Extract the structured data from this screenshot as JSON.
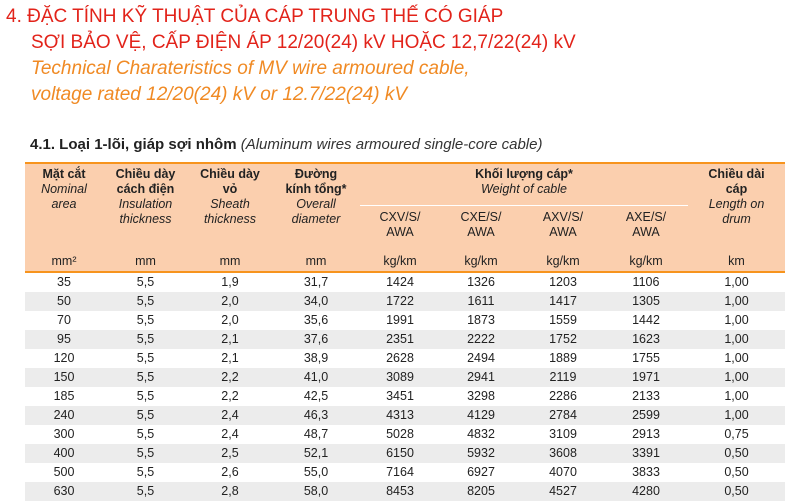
{
  "header": {
    "title_lines": [
      "4. ĐẶC TÍNH KỸ THUẬT CỦA CÁP TRUNG THẾ CÓ GIÁP",
      "SỢI BẢO VỆ, CẤP ĐIỆN ÁP 12/20(24) kV HOẶC 12,7/22(24) kV"
    ],
    "subtitle_lines": [
      "Technical Charateristics of MV wire armoured cable,",
      "voltage rated 12/20(24) kV or 12.7/22(24) kV"
    ]
  },
  "section": {
    "label": "4.1. Loại 1-lõi, giáp sợi nhôm",
    "note": "(Aluminum wires armoured single-core cable)"
  },
  "table": {
    "left_columns": [
      {
        "vi": "Mặt cắt",
        "en": "Nominal\narea"
      },
      {
        "vi": "Chiều dày\ncách điện",
        "en": "Insulation\nthickness"
      },
      {
        "vi": "Chiều dày\nvỏ",
        "en": "Sheath\nthickness"
      },
      {
        "vi": "Đường\nkính tổng*",
        "en": "Overall\ndiameter"
      }
    ],
    "group": {
      "vi": "Khối lượng cáp*",
      "en": "Weight of cable",
      "subcolumns": [
        "CXV/S/\nAWA",
        "CXE/S/\nAWA",
        "AXV/S/\nAWA",
        "AXE/S/\nAWA"
      ]
    },
    "right_column": {
      "vi": "Chiều dài\ncáp",
      "en": "Length on\ndrum"
    },
    "units": [
      "mm²",
      "mm",
      "mm",
      "mm",
      "kg/km",
      "kg/km",
      "kg/km",
      "kg/km",
      "km"
    ],
    "rows": [
      [
        "35",
        "5,5",
        "1,9",
        "31,7",
        "1424",
        "1326",
        "1203",
        "1106",
        "1,00"
      ],
      [
        "50",
        "5,5",
        "2,0",
        "34,0",
        "1722",
        "1611",
        "1417",
        "1305",
        "1,00"
      ],
      [
        "70",
        "5,5",
        "2,0",
        "35,6",
        "1991",
        "1873",
        "1559",
        "1442",
        "1,00"
      ],
      [
        "95",
        "5,5",
        "2,1",
        "37,6",
        "2351",
        "2222",
        "1752",
        "1623",
        "1,00"
      ],
      [
        "120",
        "5,5",
        "2,1",
        "38,9",
        "2628",
        "2494",
        "1889",
        "1755",
        "1,00"
      ],
      [
        "150",
        "5,5",
        "2,2",
        "41,0",
        "3089",
        "2941",
        "2119",
        "1971",
        "1,00"
      ],
      [
        "185",
        "5,5",
        "2,2",
        "42,5",
        "3451",
        "3298",
        "2286",
        "2133",
        "1,00"
      ],
      [
        "240",
        "5,5",
        "2,4",
        "46,3",
        "4313",
        "4129",
        "2784",
        "2599",
        "1,00"
      ],
      [
        "300",
        "5,5",
        "2,4",
        "48,7",
        "5028",
        "4832",
        "3109",
        "2913",
        "0,75"
      ],
      [
        "400",
        "5,5",
        "2,5",
        "52,1",
        "6150",
        "5932",
        "3608",
        "3391",
        "0,50"
      ],
      [
        "500",
        "5,5",
        "2,6",
        "55,0",
        "7164",
        "6927",
        "4070",
        "3833",
        "0,50"
      ],
      [
        "630",
        "5,5",
        "2,8",
        "58,0",
        "8453",
        "8205",
        "4527",
        "4280",
        "0,50"
      ]
    ]
  }
}
